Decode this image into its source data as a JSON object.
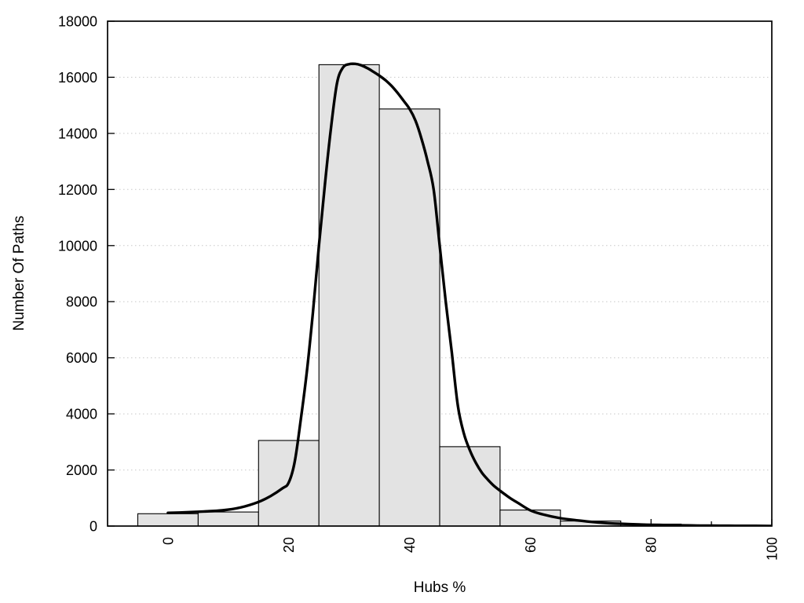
{
  "chart_data": {
    "type": "bar",
    "title": "",
    "xlabel": "Hubs %",
    "ylabel": "Number Of Paths",
    "xlim": [
      -10,
      100
    ],
    "ylim": [
      0,
      18000
    ],
    "x_major_ticks": [
      0,
      20,
      40,
      60,
      80,
      100
    ],
    "x_minor_ticks": [
      10,
      30,
      50,
      70,
      90
    ],
    "y_ticks": [
      0,
      2000,
      4000,
      6000,
      8000,
      10000,
      12000,
      14000,
      16000,
      18000
    ],
    "y_gridlines": [
      2000,
      4000,
      6000,
      8000,
      10000,
      12000,
      14000,
      16000
    ],
    "grid": "horizontal-dotted",
    "legend_position": "none",
    "x_tick_label_rotation": -90,
    "bars": {
      "name": "paths-per-hubs-percent-histogram",
      "bin_width": 10,
      "centers": [
        0,
        10,
        20,
        30,
        40,
        50,
        60,
        70,
        80,
        90,
        100
      ],
      "values": [
        440,
        500,
        3050,
        16450,
        14870,
        2830,
        570,
        180,
        70,
        30,
        15
      ]
    },
    "density_curve": {
      "name": "smoothed-density-curve",
      "points": [
        [
          0,
          470
        ],
        [
          3,
          490
        ],
        [
          6,
          520
        ],
        [
          9,
          560
        ],
        [
          12,
          660
        ],
        [
          15,
          860
        ],
        [
          17,
          1070
        ],
        [
          19,
          1350
        ],
        [
          20,
          1550
        ],
        [
          21,
          2300
        ],
        [
          22,
          3800
        ],
        [
          23,
          5500
        ],
        [
          24,
          7600
        ],
        [
          25,
          10000
        ],
        [
          26,
          12200
        ],
        [
          27,
          14200
        ],
        [
          28,
          15800
        ],
        [
          29,
          16350
        ],
        [
          30,
          16470
        ],
        [
          31,
          16480
        ],
        [
          32,
          16430
        ],
        [
          33,
          16330
        ],
        [
          34,
          16200
        ],
        [
          35,
          16060
        ],
        [
          36,
          15900
        ],
        [
          37,
          15700
        ],
        [
          38,
          15450
        ],
        [
          39,
          15170
        ],
        [
          40,
          14880
        ],
        [
          41,
          14450
        ],
        [
          42,
          13800
        ],
        [
          43,
          13000
        ],
        [
          44,
          12000
        ],
        [
          45,
          10000
        ],
        [
          46,
          8000
        ],
        [
          47,
          6200
        ],
        [
          48,
          4300
        ],
        [
          49,
          3300
        ],
        [
          50,
          2700
        ],
        [
          51,
          2250
        ],
        [
          52,
          1900
        ],
        [
          53,
          1650
        ],
        [
          54,
          1430
        ],
        [
          55,
          1260
        ],
        [
          56,
          1100
        ],
        [
          57,
          950
        ],
        [
          58,
          820
        ],
        [
          60,
          560
        ],
        [
          62,
          420
        ],
        [
          65,
          280
        ],
        [
          68,
          200
        ],
        [
          70,
          150
        ],
        [
          73,
          100
        ],
        [
          75,
          80
        ],
        [
          78,
          55
        ],
        [
          80,
          45
        ],
        [
          83,
          32
        ],
        [
          85,
          25
        ],
        [
          88,
          18
        ],
        [
          90,
          14
        ],
        [
          93,
          10
        ],
        [
          95,
          8
        ],
        [
          100,
          4
        ]
      ]
    }
  },
  "styles": {
    "background": "#ffffff",
    "bar_fill": "#e3e3e3",
    "bar_stroke": "#000000",
    "curve_color": "#000000",
    "grid_color": "#c8c8c8",
    "axis_color": "#000000",
    "text_color": "#000000"
  }
}
